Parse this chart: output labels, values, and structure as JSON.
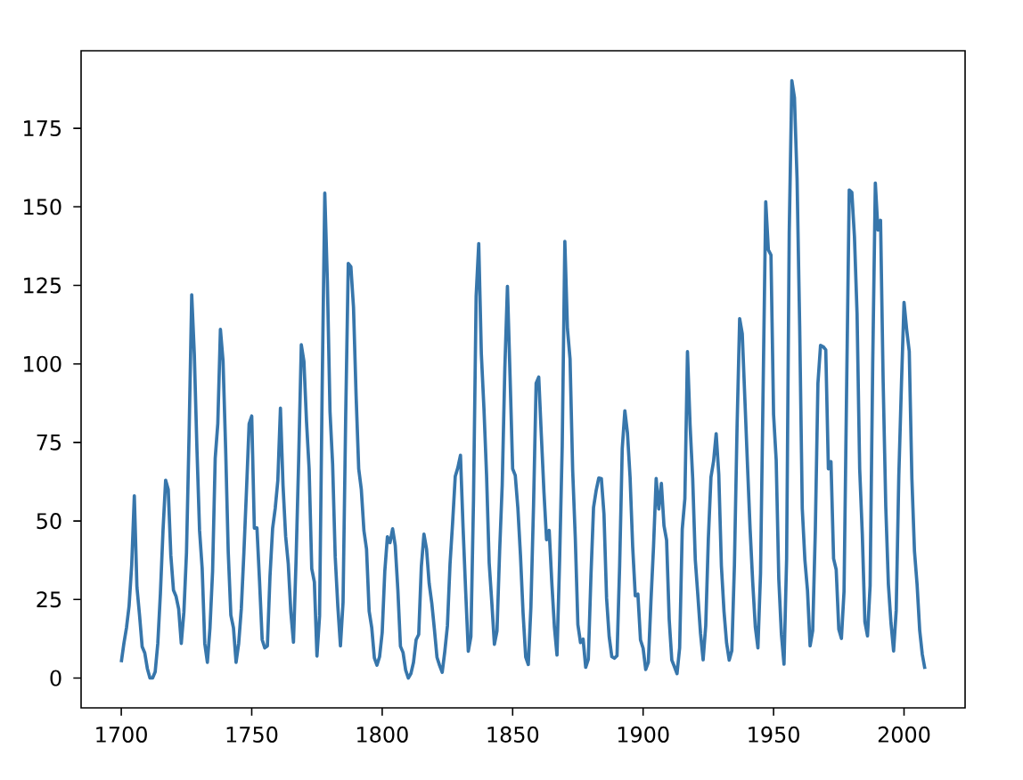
{
  "chart_data": {
    "type": "line",
    "x": [
      1700,
      1701,
      1702,
      1703,
      1704,
      1705,
      1706,
      1707,
      1708,
      1709,
      1710,
      1711,
      1712,
      1713,
      1714,
      1715,
      1716,
      1717,
      1718,
      1719,
      1720,
      1721,
      1722,
      1723,
      1724,
      1725,
      1726,
      1727,
      1728,
      1729,
      1730,
      1731,
      1732,
      1733,
      1734,
      1735,
      1736,
      1737,
      1738,
      1739,
      1740,
      1741,
      1742,
      1743,
      1744,
      1745,
      1746,
      1747,
      1748,
      1749,
      1750,
      1751,
      1752,
      1753,
      1754,
      1755,
      1756,
      1757,
      1758,
      1759,
      1760,
      1761,
      1762,
      1763,
      1764,
      1765,
      1766,
      1767,
      1768,
      1769,
      1770,
      1771,
      1772,
      1773,
      1774,
      1775,
      1776,
      1777,
      1778,
      1779,
      1780,
      1781,
      1782,
      1783,
      1784,
      1785,
      1786,
      1787,
      1788,
      1789,
      1790,
      1791,
      1792,
      1793,
      1794,
      1795,
      1796,
      1797,
      1798,
      1799,
      1800,
      1801,
      1802,
      1803,
      1804,
      1805,
      1806,
      1807,
      1808,
      1809,
      1810,
      1811,
      1812,
      1813,
      1814,
      1815,
      1816,
      1817,
      1818,
      1819,
      1820,
      1821,
      1822,
      1823,
      1824,
      1825,
      1826,
      1827,
      1828,
      1829,
      1830,
      1831,
      1832,
      1833,
      1834,
      1835,
      1836,
      1837,
      1838,
      1839,
      1840,
      1841,
      1842,
      1843,
      1844,
      1845,
      1846,
      1847,
      1848,
      1849,
      1850,
      1851,
      1852,
      1853,
      1854,
      1855,
      1856,
      1857,
      1858,
      1859,
      1860,
      1861,
      1862,
      1863,
      1864,
      1865,
      1866,
      1867,
      1868,
      1869,
      1870,
      1871,
      1872,
      1873,
      1874,
      1875,
      1876,
      1877,
      1878,
      1879,
      1880,
      1881,
      1882,
      1883,
      1884,
      1885,
      1886,
      1887,
      1888,
      1889,
      1890,
      1891,
      1892,
      1893,
      1894,
      1895,
      1896,
      1897,
      1898,
      1899,
      1900,
      1901,
      1902,
      1903,
      1904,
      1905,
      1906,
      1907,
      1908,
      1909,
      1910,
      1911,
      1912,
      1913,
      1914,
      1915,
      1916,
      1917,
      1918,
      1919,
      1920,
      1921,
      1922,
      1923,
      1924,
      1925,
      1926,
      1927,
      1928,
      1929,
      1930,
      1931,
      1932,
      1933,
      1934,
      1935,
      1936,
      1937,
      1938,
      1939,
      1940,
      1941,
      1942,
      1943,
      1944,
      1945,
      1946,
      1947,
      1948,
      1949,
      1950,
      1951,
      1952,
      1953,
      1954,
      1955,
      1956,
      1957,
      1958,
      1959,
      1960,
      1961,
      1962,
      1963,
      1964,
      1965,
      1966,
      1967,
      1968,
      1969,
      1970,
      1971,
      1972,
      1973,
      1974,
      1975,
      1976,
      1977,
      1978,
      1979,
      1980,
      1981,
      1982,
      1983,
      1984,
      1985,
      1986,
      1987,
      1988,
      1989,
      1990,
      1991,
      1992,
      1993,
      1994,
      1995,
      1996,
      1997,
      1998,
      1999,
      2000,
      2001,
      2002,
      2003,
      2004,
      2005,
      2006,
      2007,
      2008
    ],
    "values": [
      5,
      11,
      16,
      23,
      36,
      58,
      29,
      20,
      10,
      8,
      3,
      0,
      0,
      2,
      11,
      27,
      47,
      63,
      60,
      39,
      28,
      26,
      22,
      11,
      21,
      40,
      78,
      122,
      103,
      73,
      47,
      35,
      11,
      5,
      16,
      34,
      70,
      81,
      111,
      101,
      73,
      40,
      20,
      16,
      5,
      11,
      22,
      40,
      60,
      80.9,
      83.4,
      47.7,
      47.8,
      30.7,
      12.2,
      9.6,
      10.2,
      32.4,
      47.6,
      54.0,
      62.9,
      85.9,
      61.2,
      45.1,
      36.4,
      20.9,
      11.4,
      37.8,
      69.8,
      106.1,
      100.8,
      81.6,
      66.5,
      34.8,
      30.6,
      7.0,
      19.8,
      92.5,
      154.4,
      125.9,
      84.8,
      68.1,
      38.5,
      22.8,
      10.2,
      24.1,
      82.9,
      132.0,
      130.9,
      118.1,
      89.9,
      66.6,
      60.0,
      46.9,
      41.0,
      21.3,
      16.0,
      6.4,
      4.1,
      6.8,
      14.5,
      34.0,
      45.0,
      43.1,
      47.5,
      42.2,
      28.1,
      10.1,
      8.1,
      2.5,
      0.0,
      1.4,
      5.0,
      12.2,
      13.9,
      35.4,
      45.8,
      41.1,
      30.1,
      23.9,
      15.6,
      6.6,
      4.0,
      1.8,
      8.5,
      16.6,
      36.3,
      49.6,
      64.2,
      67.0,
      70.9,
      47.8,
      27.5,
      8.5,
      13.2,
      56.9,
      121.5,
      138.3,
      103.2,
      85.7,
      64.6,
      36.7,
      24.2,
      10.7,
      15.0,
      40.1,
      61.5,
      98.5,
      124.7,
      96.3,
      66.6,
      64.5,
      54.1,
      39.0,
      20.6,
      6.7,
      4.3,
      22.7,
      54.8,
      93.8,
      95.8,
      77.2,
      59.1,
      44.0,
      47.0,
      30.5,
      16.3,
      7.3,
      37.6,
      74.0,
      139.0,
      111.2,
      101.6,
      66.2,
      44.7,
      17.0,
      11.3,
      12.4,
      3.4,
      6.0,
      32.3,
      54.3,
      59.7,
      63.7,
      63.5,
      52.2,
      25.4,
      13.1,
      6.8,
      6.3,
      7.1,
      35.6,
      73.0,
      85.1,
      78.0,
      64.0,
      41.8,
      26.2,
      26.7,
      12.1,
      9.5,
      2.7,
      5.0,
      24.4,
      42.0,
      63.5,
      53.8,
      62.0,
      48.5,
      43.9,
      18.6,
      5.7,
      3.6,
      1.4,
      9.6,
      47.4,
      57.1,
      103.9,
      80.6,
      63.6,
      37.6,
      26.1,
      14.2,
      5.8,
      16.7,
      44.3,
      63.9,
      69.0,
      77.8,
      64.9,
      35.7,
      21.2,
      11.1,
      5.7,
      8.7,
      36.1,
      79.7,
      114.4,
      109.6,
      88.8,
      67.8,
      47.5,
      30.6,
      16.3,
      9.6,
      33.2,
      92.6,
      151.6,
      136.3,
      134.7,
      83.9,
      69.4,
      31.5,
      13.9,
      4.4,
      38.0,
      141.7,
      190.2,
      184.8,
      159.0,
      112.3,
      53.9,
      37.6,
      27.9,
      10.2,
      15.1,
      47.0,
      93.8,
      105.9,
      105.5,
      104.5,
      66.6,
      68.9,
      38.0,
      34.5,
      15.5,
      12.6,
      27.5,
      92.5,
      155.4,
      154.6,
      140.4,
      115.9,
      66.6,
      45.9,
      17.9,
      13.4,
      29.4,
      100.2,
      157.6,
      142.6,
      145.7,
      94.3,
      54.6,
      29.9,
      17.5,
      8.6,
      21.5,
      64.3,
      93.3,
      119.6,
      111.0,
      104.0,
      63.7,
      40.4,
      29.8,
      15.2,
      7.5,
      2.9
    ],
    "color": "#3776ab",
    "xlim": [
      1684.6,
      2023.4
    ],
    "ylim": [
      -9.5,
      199.7
    ],
    "xticks": [
      1700,
      1750,
      1800,
      1850,
      1900,
      1950,
      2000
    ],
    "yticks": [
      0,
      25,
      50,
      75,
      100,
      125,
      150,
      175
    ],
    "line_style": "solid"
  }
}
